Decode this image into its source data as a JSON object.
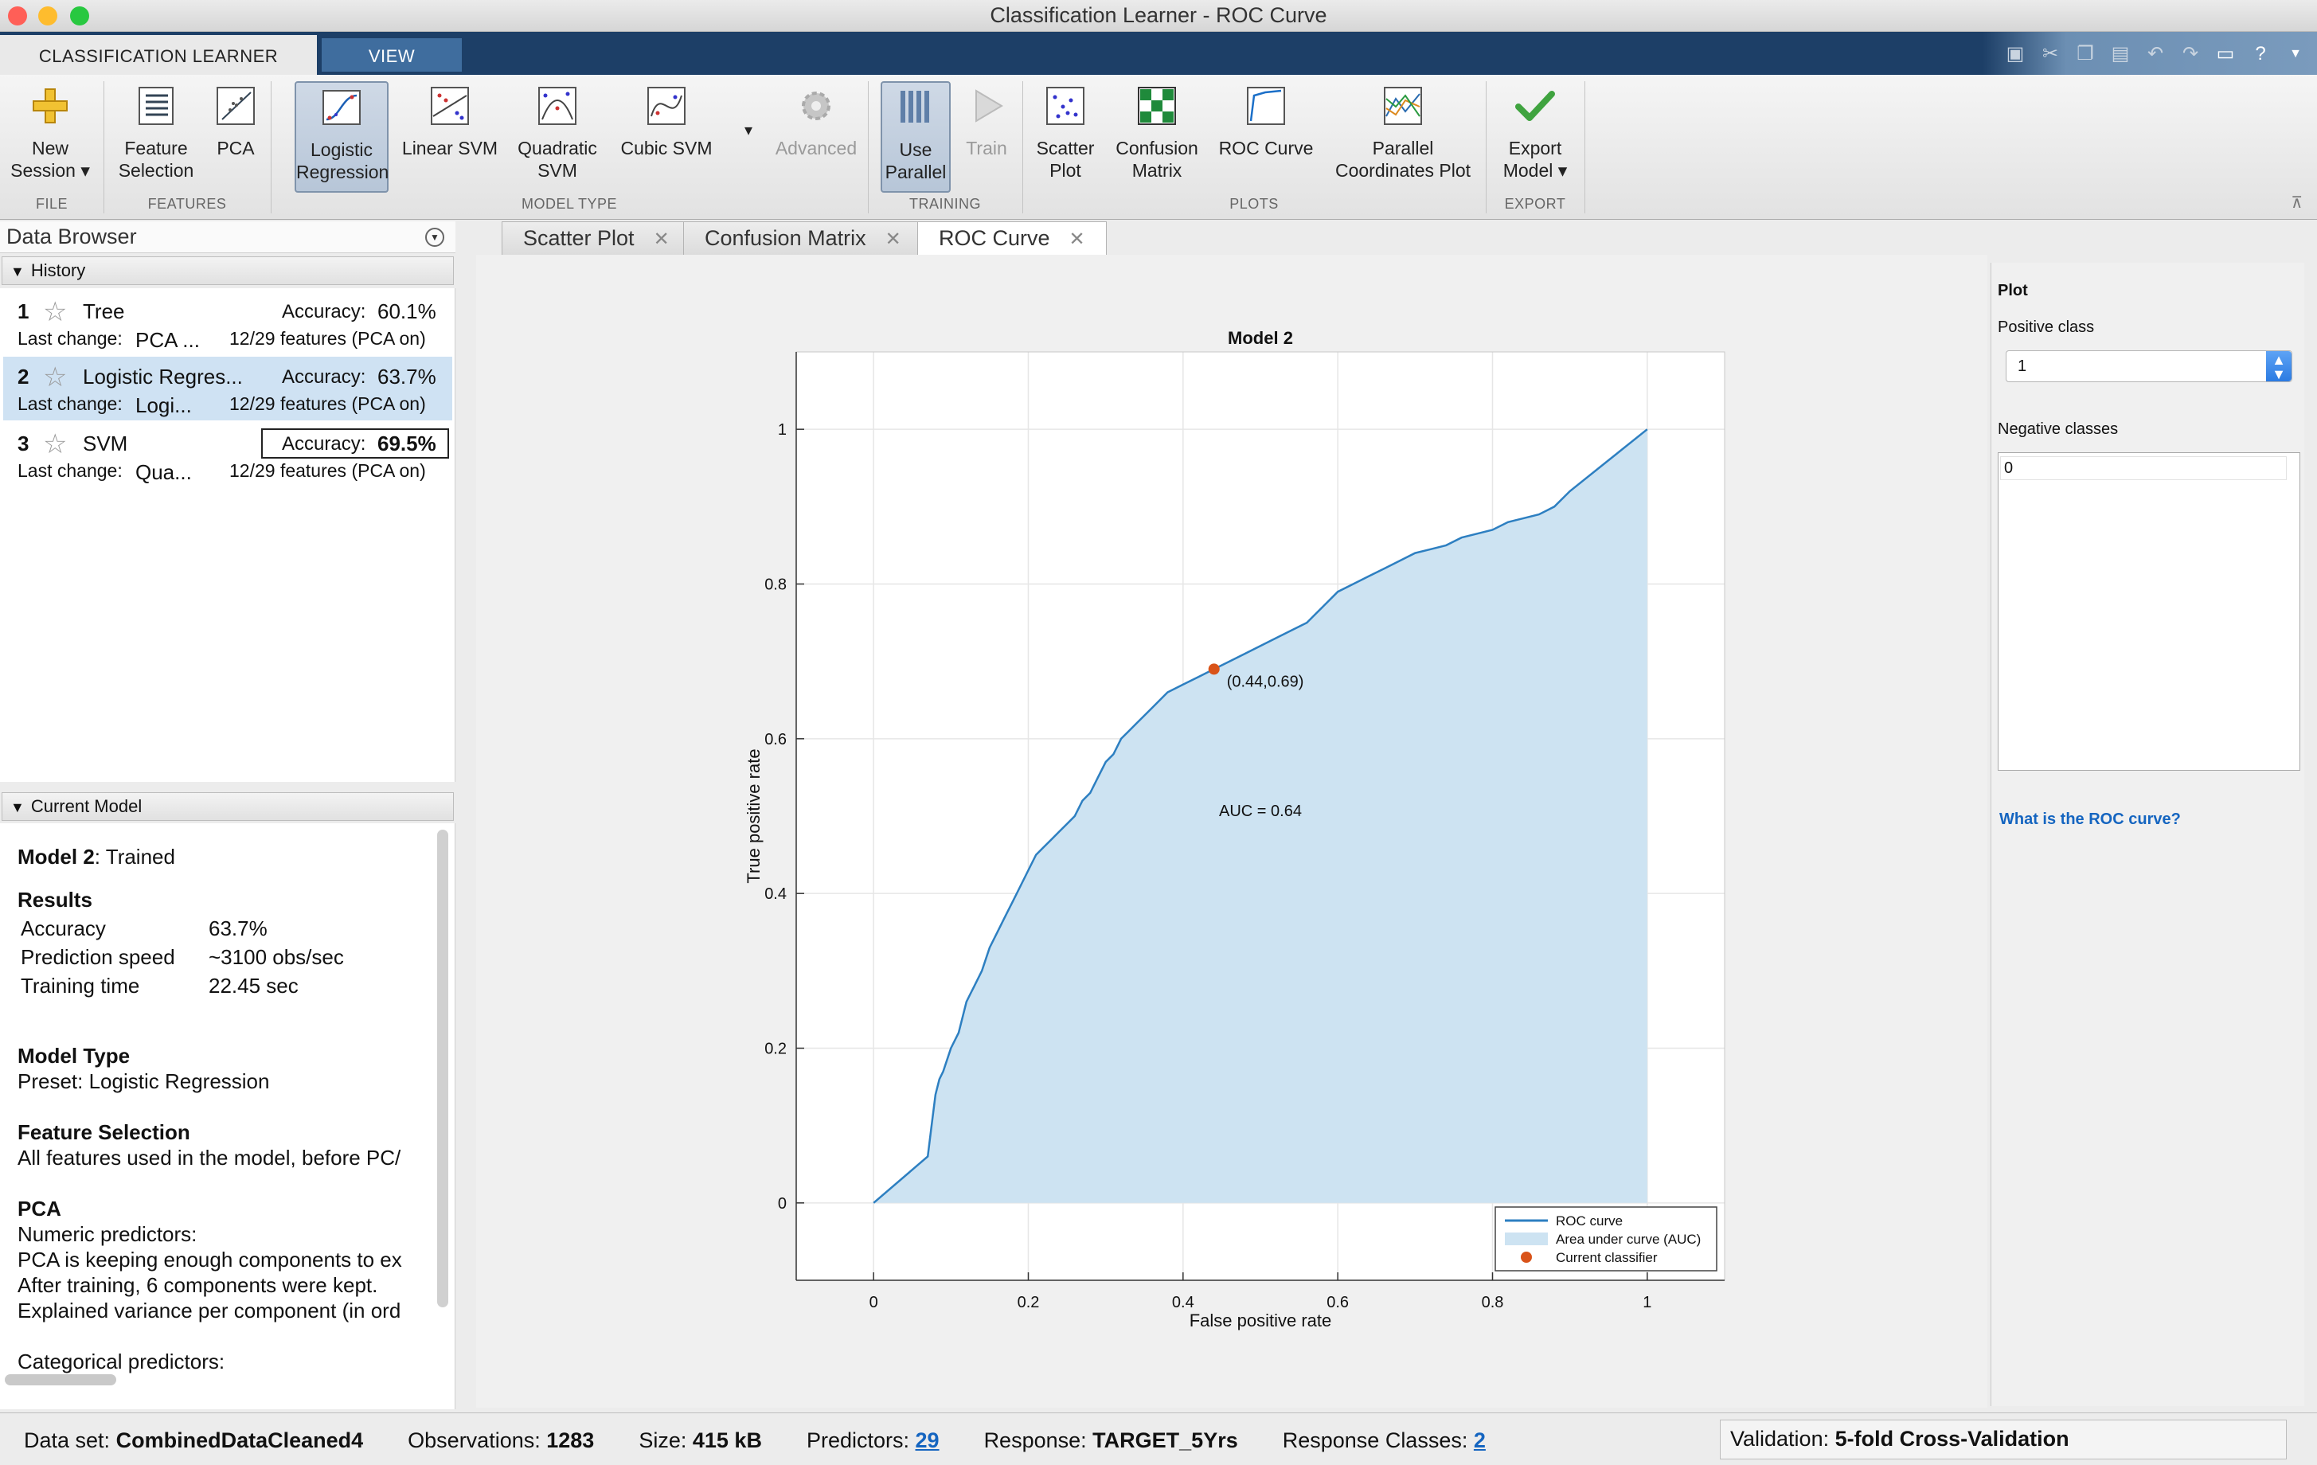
{
  "window": {
    "title": "Classification Learner - ROC Curve"
  },
  "tabs": {
    "classification": "CLASSIFICATION LEARNER",
    "view": "VIEW"
  },
  "ribbon": {
    "new_session": [
      "New",
      "Session ▾"
    ],
    "feature_selection": [
      "Feature",
      "Selection"
    ],
    "pca": "PCA",
    "logistic": [
      "Logistic",
      "Regression"
    ],
    "linear_svm": "Linear SVM",
    "quadratic_svm": [
      "Quadratic",
      "SVM"
    ],
    "cubic_svm": "Cubic SVM",
    "advanced": "Advanced",
    "use_parallel": [
      "Use",
      "Parallel"
    ],
    "train": "Train",
    "scatter": [
      "Scatter",
      "Plot"
    ],
    "confusion": [
      "Confusion",
      "Matrix"
    ],
    "roc": "ROC Curve",
    "parallel_coords": [
      "Parallel",
      "Coordinates Plot"
    ],
    "export": [
      "Export",
      "Model ▾"
    ],
    "groups": {
      "file": "FILE",
      "features": "FEATURES",
      "model_type": "MODEL TYPE",
      "training": "TRAINING",
      "plots": "PLOTS",
      "export": "EXPORT"
    }
  },
  "data_browser": {
    "title": "Data Browser",
    "history_label": "History",
    "history": [
      {
        "num": "1",
        "name": "Tree",
        "acc_label": "Accuracy:",
        "acc": "60.1%",
        "lc_label": "Last change:",
        "lc": "PCA ...",
        "features": "12/29 features (PCA on)"
      },
      {
        "num": "2",
        "name": "Logistic Regres...",
        "acc_label": "Accuracy:",
        "acc": "63.7%",
        "lc_label": "Last change:",
        "lc": "Logi...",
        "features": "12/29 features (PCA on)"
      },
      {
        "num": "3",
        "name": "SVM",
        "acc_label": "Accuracy:",
        "acc": "69.5%",
        "lc_label": "Last change:",
        "lc": "Qua...",
        "features": "12/29 features (PCA on)"
      }
    ],
    "current_model_label": "Current Model"
  },
  "current_model": {
    "title_bold": "Model 2",
    "title_rest": ": Trained",
    "results_h": "Results",
    "results": [
      [
        "Accuracy",
        "63.7%"
      ],
      [
        "Prediction speed",
        "~3100 obs/sec"
      ],
      [
        "Training time",
        "22.45 sec"
      ]
    ],
    "model_type_h": "Model Type",
    "model_type": "Preset: Logistic Regression",
    "feature_sel_h": "Feature Selection",
    "feature_sel": "All features used in the model, before PC/",
    "pca_h": "PCA",
    "pca_lines": [
      "Numeric predictors:",
      "PCA is keeping enough components to ex",
      "After training, 6 components were kept.",
      "Explained variance per component (in ord"
    ],
    "cat_pred": "Categorical predictors:"
  },
  "doc_tabs": [
    "Scatter Plot",
    "Confusion Matrix",
    "ROC Curve"
  ],
  "chart_data": {
    "type": "line",
    "title": "Model 2",
    "xlabel": "False positive rate",
    "ylabel": "True positive rate",
    "xlim": [
      -0.1,
      1.1
    ],
    "ylim": [
      -0.1,
      1.1
    ],
    "xticks": [
      0,
      0.2,
      0.4,
      0.6,
      0.8,
      1
    ],
    "yticks": [
      0,
      0.2,
      0.4,
      0.6,
      0.8,
      1
    ],
    "xtick_labels": [
      "0",
      "0.2",
      "0.4",
      "0.6",
      "0.8",
      "1"
    ],
    "ytick_labels": [
      "0",
      "0.2",
      "0.4",
      "0.6",
      "0.8",
      "1"
    ],
    "grid": true,
    "series": [
      {
        "name": "ROC curve",
        "x": [
          0,
          0.07,
          0.075,
          0.08,
          0.085,
          0.09,
          0.1,
          0.11,
          0.12,
          0.125,
          0.13,
          0.14,
          0.15,
          0.16,
          0.17,
          0.18,
          0.19,
          0.2,
          0.21,
          0.22,
          0.23,
          0.24,
          0.25,
          0.26,
          0.27,
          0.28,
          0.29,
          0.3,
          0.31,
          0.32,
          0.33,
          0.34,
          0.35,
          0.36,
          0.38,
          0.4,
          0.42,
          0.44,
          0.46,
          0.48,
          0.5,
          0.52,
          0.54,
          0.56,
          0.58,
          0.6,
          0.62,
          0.64,
          0.66,
          0.68,
          0.7,
          0.72,
          0.74,
          0.76,
          0.78,
          0.8,
          0.82,
          0.84,
          0.86,
          0.87,
          0.88,
          0.9,
          0.95,
          1.0
        ],
        "y": [
          0,
          0.06,
          0.1,
          0.14,
          0.16,
          0.17,
          0.2,
          0.22,
          0.26,
          0.27,
          0.28,
          0.3,
          0.33,
          0.35,
          0.37,
          0.39,
          0.41,
          0.43,
          0.45,
          0.46,
          0.47,
          0.48,
          0.49,
          0.5,
          0.52,
          0.53,
          0.55,
          0.57,
          0.58,
          0.6,
          0.61,
          0.62,
          0.63,
          0.64,
          0.66,
          0.67,
          0.68,
          0.69,
          0.7,
          0.71,
          0.72,
          0.73,
          0.74,
          0.75,
          0.77,
          0.79,
          0.8,
          0.81,
          0.82,
          0.83,
          0.84,
          0.845,
          0.85,
          0.86,
          0.865,
          0.87,
          0.88,
          0.885,
          0.89,
          0.895,
          0.9,
          0.92,
          0.96,
          1.0
        ],
        "color": "#2d7fc1"
      }
    ],
    "auc_fill_color": "#cde3f2",
    "current_classifier": {
      "x": 0.44,
      "y": 0.69,
      "label": "(0.44,0.69)",
      "color": "#d95319"
    },
    "auc_text": "AUC = 0.64",
    "legend": [
      "ROC curve",
      "Area under curve (AUC)",
      "Current classifier"
    ],
    "legend_position": "bottom-right"
  },
  "right_panel": {
    "plot_label": "Plot",
    "positive_label": "Positive class",
    "positive_value": "1",
    "negative_label": "Negative classes",
    "negative_value": "0",
    "roc_link": "What is the ROC curve?"
  },
  "status": {
    "dataset_label": "Data set:",
    "dataset": "CombinedDataCleaned4",
    "obs_label": "Observations:",
    "obs": "1283",
    "size_label": "Size:",
    "size": "415 kB",
    "pred_label": "Predictors:",
    "pred": "29",
    "resp_label": "Response:",
    "resp": "TARGET_5Yrs",
    "rclasses_label": "Response Classes:",
    "rclasses": "2",
    "validation_label": "Validation:",
    "validation": "5-fold Cross-Validation"
  }
}
